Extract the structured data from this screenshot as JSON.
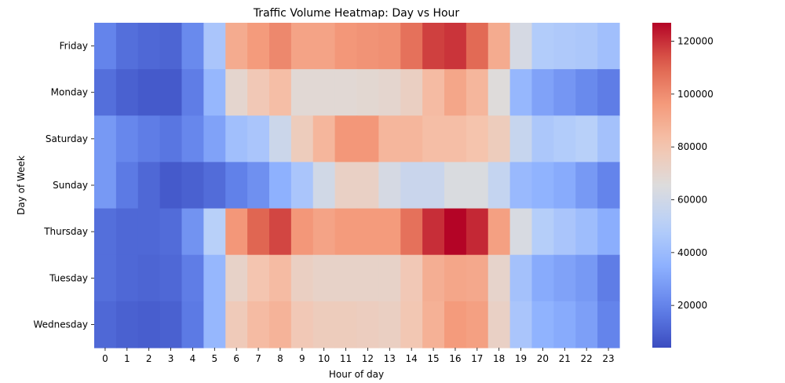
{
  "chart_data": {
    "type": "heatmap",
    "title": "Traffic Volume Heatmap: Day vs Hour",
    "xlabel": "Hour of day",
    "ylabel": "Day of Week",
    "x": [
      "0",
      "1",
      "2",
      "3",
      "4",
      "5",
      "6",
      "7",
      "8",
      "9",
      "10",
      "11",
      "12",
      "13",
      "14",
      "15",
      "16",
      "17",
      "18",
      "19",
      "20",
      "21",
      "22",
      "23"
    ],
    "y": [
      "Friday",
      "Monday",
      "Saturday",
      "Sunday",
      "Thursday",
      "Tuesday",
      "Wednesday"
    ],
    "values": [
      [
        20000,
        14000,
        12000,
        11000,
        22000,
        45000,
        90000,
        96000,
        101000,
        93000,
        93000,
        97000,
        98000,
        99000,
        107000,
        117000,
        119000,
        109000,
        90000,
        62000,
        48000,
        47000,
        46000,
        42000
      ],
      [
        14000,
        10000,
        8000,
        8000,
        18000,
        38000,
        70000,
        78000,
        83000,
        68000,
        68000,
        68000,
        69000,
        70000,
        74000,
        84000,
        92000,
        86000,
        66000,
        38000,
        30000,
        26000,
        22000,
        18000
      ],
      [
        27000,
        21000,
        18000,
        16000,
        21000,
        30000,
        42000,
        45000,
        58000,
        76000,
        86000,
        97000,
        97000,
        86000,
        86000,
        83000,
        83000,
        81000,
        76000,
        56000,
        46000,
        48000,
        50000,
        43000
      ],
      [
        27000,
        17000,
        12000,
        8000,
        10000,
        13000,
        19000,
        24000,
        35000,
        45000,
        60000,
        73000,
        73000,
        62000,
        57000,
        57000,
        64000,
        64000,
        55000,
        39000,
        36000,
        33000,
        27000,
        20000
      ],
      [
        14000,
        12000,
        12000,
        13000,
        25000,
        50000,
        97000,
        110000,
        116000,
        97000,
        93000,
        96000,
        96000,
        96000,
        107000,
        120000,
        127000,
        121000,
        94000,
        63000,
        49000,
        45000,
        41000,
        34000
      ],
      [
        14000,
        12000,
        11000,
        12000,
        18000,
        38000,
        72000,
        80000,
        84000,
        74000,
        72000,
        72000,
        72000,
        72000,
        78000,
        89000,
        92000,
        91000,
        71000,
        43000,
        33000,
        30000,
        27000,
        18000
      ],
      [
        12000,
        10000,
        9000,
        10000,
        17000,
        38000,
        77000,
        84000,
        87000,
        78000,
        76000,
        76000,
        75000,
        74000,
        79000,
        88000,
        96000,
        94000,
        73000,
        45000,
        36000,
        33000,
        29000,
        20000
      ]
    ],
    "colormap": "coolwarm",
    "vmin": 4000,
    "vmax": 127000,
    "colorbar_ticks": [
      "20000",
      "40000",
      "60000",
      "80000",
      "100000",
      "120000"
    ],
    "legend": "colorbar-right"
  }
}
